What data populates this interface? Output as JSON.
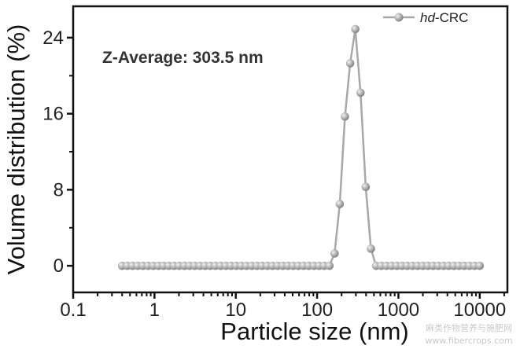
{
  "chart_data": {
    "type": "line",
    "title": "",
    "xlabel": "Particle size (nm)",
    "ylabel": "Volume distribution (%)",
    "xscale": "log",
    "xlim": [
      0.1,
      21900
    ],
    "ylim": [
      -2.8,
      27.3
    ],
    "xticks": [
      0.1,
      1,
      10,
      100,
      1000,
      10000
    ],
    "xtick_labels": [
      "0.1",
      "1",
      "10",
      "100",
      "1000",
      "10000"
    ],
    "yticks": [
      0,
      8,
      16,
      24
    ],
    "ytick_labels": [
      "0",
      "8",
      "16",
      "24"
    ],
    "grid": false,
    "legend_position": "top-right",
    "annotation": "Z-Average: 303.5 nm",
    "series": [
      {
        "name": "hd-CRC",
        "name_italic_part": "hd",
        "name_rest": "-CRC",
        "color": "#a8a8a8",
        "marker": "sphere",
        "x": [
          0.4,
          0.463,
          0.536,
          0.621,
          0.72,
          0.833,
          0.965,
          1.12,
          1.29,
          1.5,
          1.74,
          2.01,
          2.33,
          2.7,
          3.12,
          3.62,
          4.19,
          4.85,
          5.61,
          6.5,
          7.53,
          8.72,
          10.1,
          11.7,
          13.5,
          15.7,
          18.2,
          21.0,
          24.4,
          28.2,
          32.7,
          37.8,
          43.8,
          50.7,
          58.8,
          68.1,
          78.8,
          91.3,
          106,
          122,
          142,
          164,
          190,
          220,
          255,
          295,
          342,
          396,
          459,
          531,
          615,
          712,
          825,
          955,
          1106,
          1281,
          1484,
          1718,
          1990,
          2305,
          2669,
          3091,
          3580,
          4145,
          4801,
          5560,
          6439,
          7456,
          8635,
          10000
        ],
        "y": [
          0,
          0,
          0,
          0,
          0,
          0,
          0,
          0,
          0,
          0,
          0,
          0,
          0,
          0,
          0,
          0,
          0,
          0,
          0,
          0,
          0,
          0,
          0,
          0,
          0,
          0,
          0,
          0,
          0,
          0,
          0,
          0,
          0,
          0,
          0,
          0,
          0,
          0,
          0,
          0,
          0,
          1.3,
          6.5,
          15.7,
          21.3,
          24.9,
          18.2,
          8.3,
          1.8,
          0,
          0,
          0,
          0,
          0,
          0,
          0,
          0,
          0,
          0,
          0,
          0,
          0,
          0,
          0,
          0,
          0,
          0,
          0,
          0,
          0
        ]
      }
    ]
  },
  "watermark": {
    "line1": "麻类作物营养与施肥网",
    "line2": "www.fibercrops.com"
  }
}
